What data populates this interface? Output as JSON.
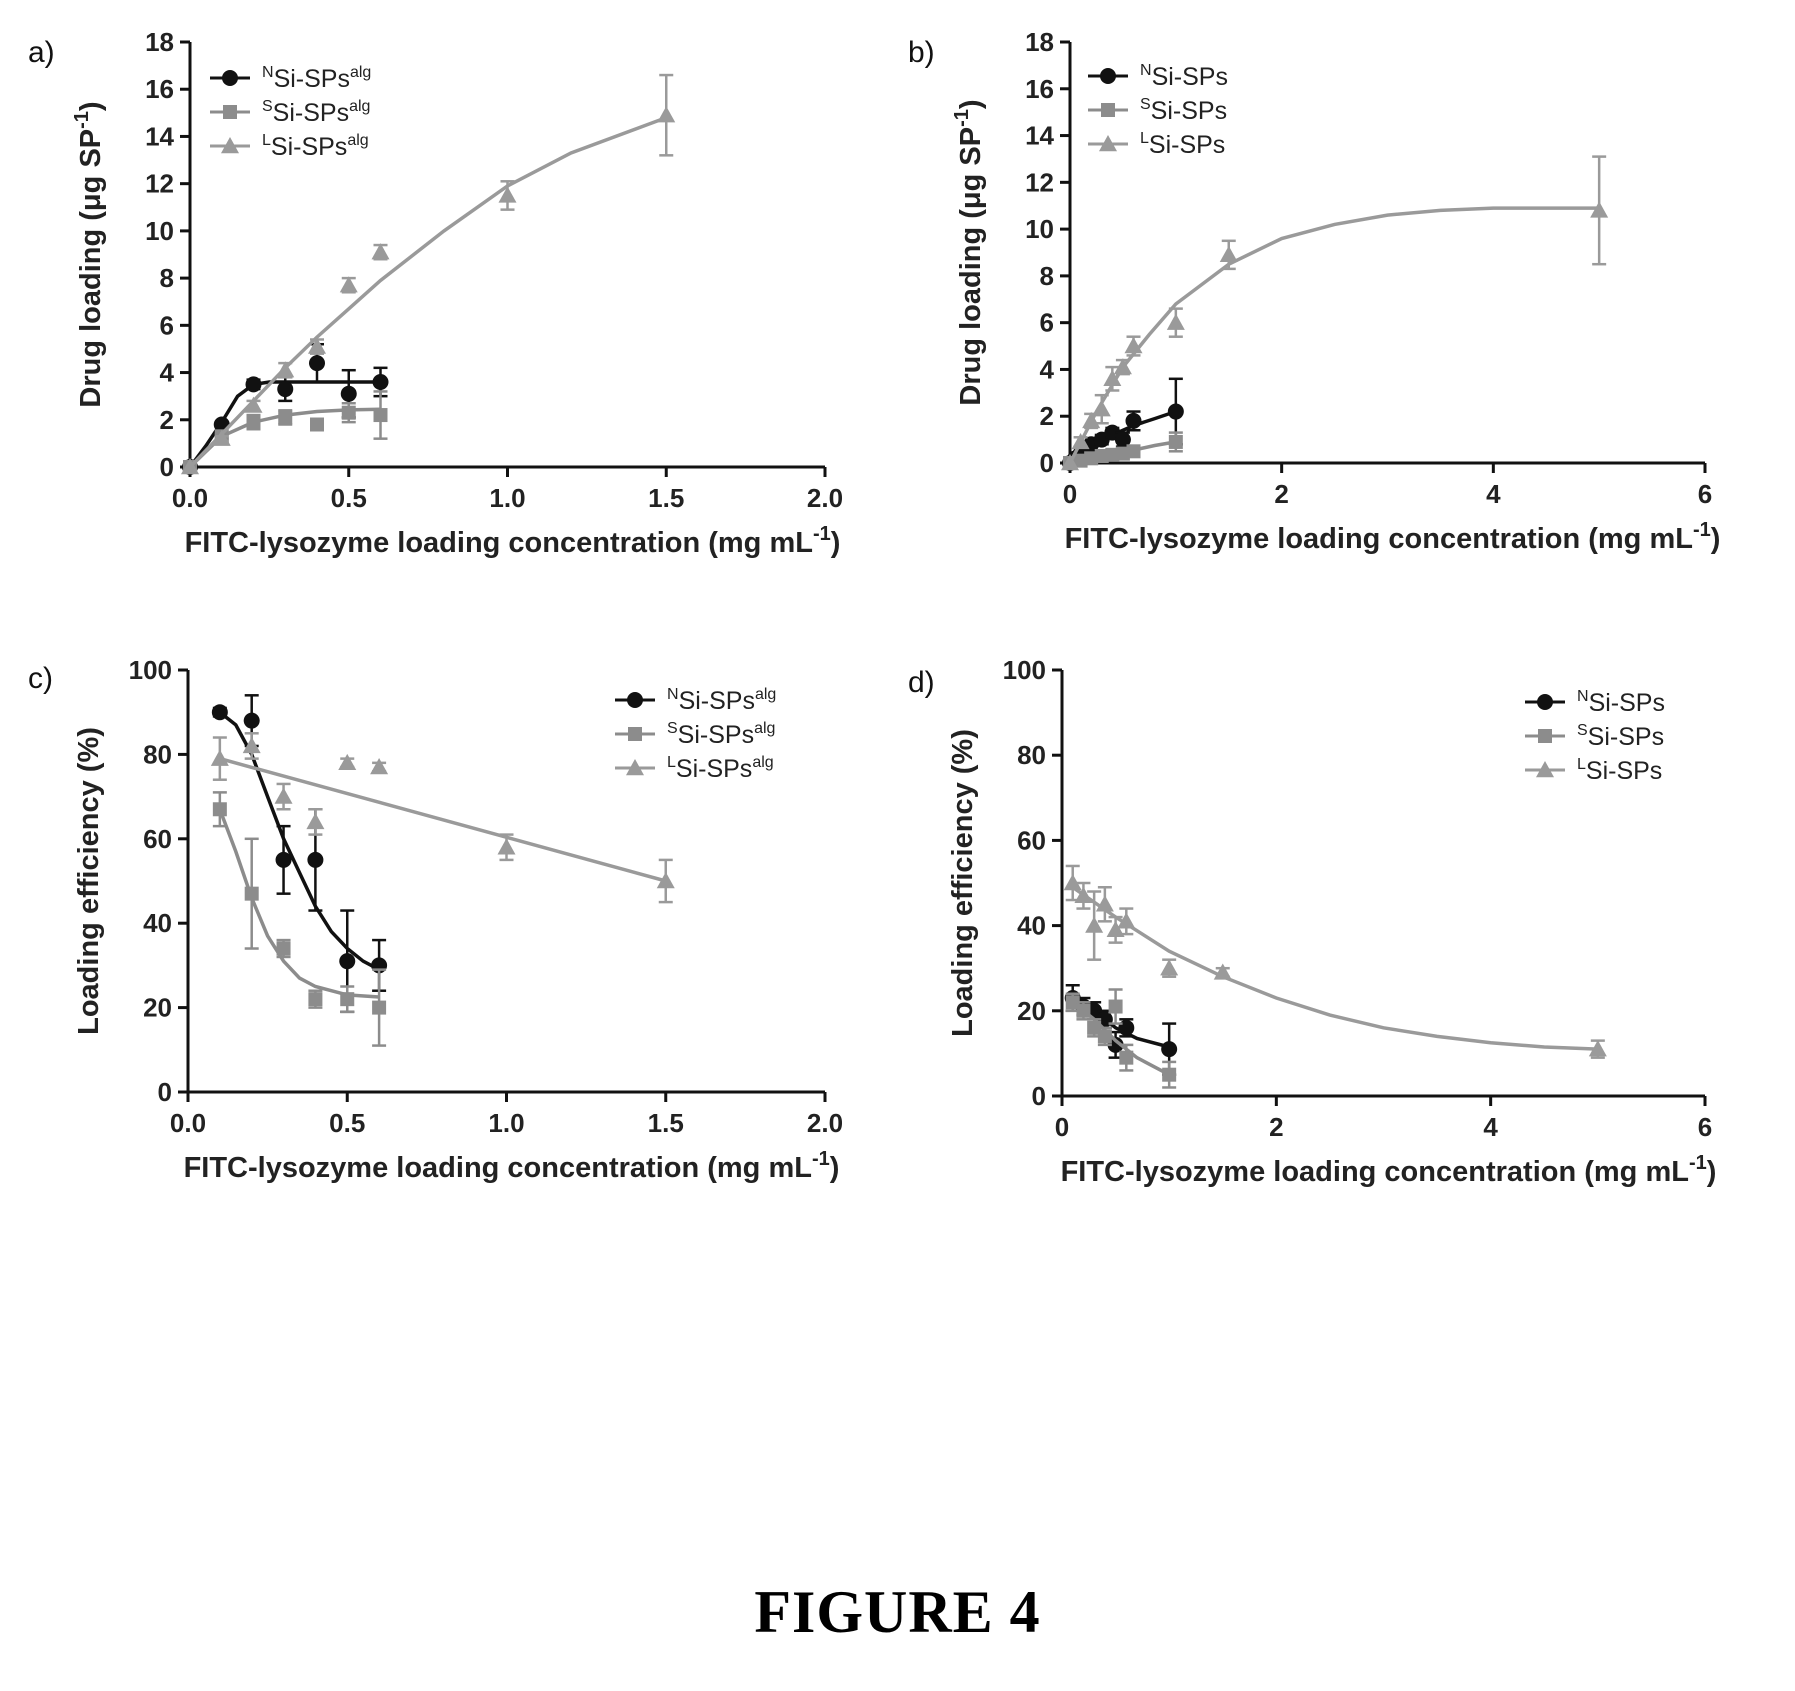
{
  "figure_caption": "FIGURE 4",
  "chart_data": [
    {
      "panel_label": "a)",
      "type": "scatter",
      "xlabel": "FITC-lysozyme loading concentration (mg mL",
      "xlabel_sup": "-1",
      "xlabel_tail": ")",
      "ylabel": "Drug loading (μg SP",
      "ylabel_sup": "-1",
      "ylabel_tail": ")",
      "xlim": [
        0,
        2.0
      ],
      "ylim": [
        0,
        18
      ],
      "xticks": [
        "0.0",
        "0.5",
        "1.0",
        "1.5",
        "2.0"
      ],
      "xtick_values": [
        0,
        0.5,
        1.0,
        1.5,
        2.0
      ],
      "yticks": [
        "0",
        "2",
        "4",
        "6",
        "8",
        "10",
        "12",
        "14",
        "16",
        "18"
      ],
      "ytick_values": [
        0,
        2,
        4,
        6,
        8,
        10,
        12,
        14,
        16,
        18
      ],
      "legend_position": "top-left",
      "series": [
        {
          "name": "Si-SPs",
          "sup_prefix": "N",
          "sup_suffix": "alg",
          "color": "#111111",
          "marker": "circle",
          "x": [
            0,
            0.1,
            0.2,
            0.3,
            0.4,
            0.5,
            0.6
          ],
          "y": [
            0,
            1.8,
            3.5,
            3.3,
            4.4,
            3.1,
            3.6
          ],
          "err": [
            0,
            0.1,
            0.2,
            0.5,
            0.8,
            1.0,
            0.6
          ],
          "fit_x": [
            0,
            0.05,
            0.1,
            0.15,
            0.2,
            0.25,
            0.3,
            0.4,
            0.5,
            0.6
          ],
          "fit_y": [
            0,
            0.9,
            1.9,
            3.0,
            3.5,
            3.6,
            3.6,
            3.6,
            3.6,
            3.6
          ]
        },
        {
          "name": "Si-SPs",
          "sup_prefix": "S",
          "sup_suffix": "alg",
          "color": "#8c8c8c",
          "marker": "square",
          "x": [
            0,
            0.1,
            0.2,
            0.3,
            0.4,
            0.5,
            0.6
          ],
          "y": [
            0,
            1.3,
            1.9,
            2.1,
            1.8,
            2.3,
            2.2
          ],
          "err": [
            0,
            0.1,
            0.3,
            0.3,
            0.2,
            0.4,
            1.0
          ],
          "fit_x": [
            0,
            0.1,
            0.2,
            0.3,
            0.4,
            0.5,
            0.6
          ],
          "fit_y": [
            0,
            1.3,
            1.9,
            2.2,
            2.35,
            2.42,
            2.45
          ]
        },
        {
          "name": "Si-SPs",
          "sup_prefix": "L",
          "sup_suffix": "alg",
          "color": "#9a9a9a",
          "marker": "triangle",
          "x": [
            0,
            0.1,
            0.2,
            0.3,
            0.4,
            0.5,
            0.6,
            1.0,
            1.5
          ],
          "y": [
            0,
            1.2,
            2.6,
            4.1,
            5.1,
            7.7,
            9.1,
            11.5,
            14.9
          ],
          "err": [
            0,
            0.1,
            0.2,
            0.3,
            0.3,
            0.3,
            0.3,
            0.6,
            1.7
          ],
          "fit_x": [
            0,
            0.1,
            0.2,
            0.3,
            0.4,
            0.5,
            0.6,
            0.8,
            1.0,
            1.2,
            1.5
          ],
          "fit_y": [
            0,
            1.4,
            2.8,
            4.2,
            5.5,
            6.7,
            7.9,
            10.0,
            11.9,
            13.3,
            14.8
          ]
        }
      ]
    },
    {
      "panel_label": "b)",
      "type": "scatter",
      "xlabel": "FITC-lysozyme loading concentration (mg mL",
      "xlabel_sup": "-1",
      "xlabel_tail": ")",
      "ylabel": "Drug loading (μg SP",
      "ylabel_sup": "-1",
      "ylabel_tail": ")",
      "xlim": [
        0,
        6
      ],
      "ylim": [
        0,
        18
      ],
      "xticks": [
        "0",
        "2",
        "4",
        "6"
      ],
      "xtick_values": [
        0,
        2,
        4,
        6
      ],
      "yticks": [
        "0",
        "2",
        "4",
        "6",
        "8",
        "10",
        "12",
        "14",
        "16",
        "18"
      ],
      "ytick_values": [
        0,
        2,
        4,
        6,
        8,
        10,
        12,
        14,
        16,
        18
      ],
      "legend_position": "top-left",
      "series": [
        {
          "name": "Si-SPs",
          "sup_prefix": "N",
          "sup_suffix": "",
          "color": "#111111",
          "marker": "circle",
          "x": [
            0,
            0.05,
            0.1,
            0.15,
            0.2,
            0.3,
            0.4,
            0.5,
            0.6,
            1.0
          ],
          "y": [
            0,
            0.2,
            0.4,
            0.5,
            0.8,
            1.0,
            1.3,
            1.0,
            1.8,
            2.2
          ],
          "err": [
            0,
            0.1,
            0.1,
            0.1,
            0.1,
            0.2,
            0.2,
            0.3,
            0.4,
            1.4
          ],
          "fit_x": [
            0,
            0.2,
            0.4,
            0.6,
            0.8,
            1.0
          ],
          "fit_y": [
            0,
            0.7,
            1.2,
            1.6,
            1.9,
            2.2
          ]
        },
        {
          "name": "Si-SPs",
          "sup_prefix": "S",
          "sup_suffix": "",
          "color": "#8c8c8c",
          "marker": "square",
          "x": [
            0,
            0.1,
            0.2,
            0.3,
            0.4,
            0.5,
            0.6,
            1.0
          ],
          "y": [
            0,
            0.1,
            0.2,
            0.3,
            0.35,
            0.4,
            0.5,
            0.9
          ],
          "err": [
            0,
            0.05,
            0.05,
            0.1,
            0.1,
            0.1,
            0.1,
            0.4
          ],
          "fit_x": [
            0,
            0.2,
            0.4,
            0.6,
            0.8,
            1.0
          ],
          "fit_y": [
            0,
            0.2,
            0.4,
            0.55,
            0.75,
            0.9
          ]
        },
        {
          "name": "Si-SPs",
          "sup_prefix": "L",
          "sup_suffix": "",
          "color": "#9a9a9a",
          "marker": "triangle",
          "x": [
            0,
            0.1,
            0.2,
            0.3,
            0.4,
            0.5,
            0.6,
            1.0,
            1.5,
            5.0
          ],
          "y": [
            0,
            0.9,
            1.8,
            2.3,
            3.6,
            4.1,
            5.0,
            6.0,
            8.9,
            10.8
          ],
          "err": [
            0,
            0.2,
            0.3,
            0.6,
            0.5,
            0.3,
            0.4,
            0.6,
            0.6,
            2.3
          ],
          "fit_x": [
            0,
            0.25,
            0.5,
            0.75,
            1.0,
            1.5,
            2.0,
            2.5,
            3.0,
            3.5,
            4.0,
            5.0
          ],
          "fit_y": [
            0,
            2.2,
            4.1,
            5.5,
            6.8,
            8.5,
            9.6,
            10.2,
            10.6,
            10.8,
            10.9,
            10.9
          ]
        }
      ]
    },
    {
      "panel_label": "c)",
      "type": "scatter",
      "xlabel": "FITC-lysozyme loading concentration (mg mL",
      "xlabel_sup": "-1",
      "xlabel_tail": ")",
      "ylabel": "Loading efficiency (%)",
      "ylabel_sup": "",
      "ylabel_tail": "",
      "xlim": [
        0,
        2.0
      ],
      "ylim": [
        0,
        100
      ],
      "xticks": [
        "0.0",
        "0.5",
        "1.0",
        "1.5",
        "2.0"
      ],
      "xtick_values": [
        0,
        0.5,
        1.0,
        1.5,
        2.0
      ],
      "yticks": [
        "0",
        "20",
        "40",
        "60",
        "80",
        "100"
      ],
      "ytick_values": [
        0,
        20,
        40,
        60,
        80,
        100
      ],
      "legend_position": "top-right",
      "series": [
        {
          "name": "Si-SPs",
          "sup_prefix": "N",
          "sup_suffix": "alg",
          "color": "#111111",
          "marker": "circle",
          "x": [
            0.1,
            0.2,
            0.3,
            0.4,
            0.5,
            0.6
          ],
          "y": [
            90,
            88,
            55,
            55,
            31,
            30
          ],
          "err": [
            1,
            6,
            8,
            12,
            12,
            6
          ],
          "fit_x": [
            0.1,
            0.15,
            0.2,
            0.25,
            0.3,
            0.35,
            0.4,
            0.45,
            0.5,
            0.55,
            0.6
          ],
          "fit_y": [
            90,
            87,
            80,
            70,
            60,
            52,
            44,
            38,
            34,
            31,
            29
          ]
        },
        {
          "name": "Si-SPs",
          "sup_prefix": "S",
          "sup_suffix": "alg",
          "color": "#8c8c8c",
          "marker": "square",
          "x": [
            0.1,
            0.2,
            0.3,
            0.4,
            0.5,
            0.6
          ],
          "y": [
            67,
            47,
            34,
            22,
            22,
            20
          ],
          "err": [
            4,
            13,
            2,
            2,
            3,
            9
          ],
          "fit_x": [
            0.1,
            0.15,
            0.2,
            0.25,
            0.3,
            0.35,
            0.4,
            0.5,
            0.6
          ],
          "fit_y": [
            67,
            57,
            46,
            37,
            31,
            27,
            25,
            23,
            22.5
          ]
        },
        {
          "name": "Si-SPs",
          "sup_prefix": "L",
          "sup_suffix": "alg",
          "color": "#9a9a9a",
          "marker": "triangle",
          "x": [
            0.1,
            0.2,
            0.3,
            0.4,
            0.5,
            0.6,
            1.0,
            1.5
          ],
          "y": [
            79,
            82,
            70,
            64,
            78,
            77,
            58,
            50
          ],
          "err": [
            5,
            3,
            3,
            3,
            1,
            1,
            3,
            5
          ],
          "fit_x": [
            0.1,
            1.5
          ],
          "fit_y": [
            79,
            50
          ]
        }
      ]
    },
    {
      "panel_label": "d)",
      "type": "scatter",
      "xlabel": "FITC-lysozyme loading concentration (mg mL",
      "xlabel_sup": "-1",
      "xlabel_tail": ")",
      "ylabel": "Loading efficiency (%)",
      "ylabel_sup": "",
      "ylabel_tail": "",
      "xlim": [
        0,
        6
      ],
      "ylim": [
        0,
        100
      ],
      "xticks": [
        "0",
        "2",
        "4",
        "6"
      ],
      "xtick_values": [
        0,
        2,
        4,
        6
      ],
      "yticks": [
        "0",
        "20",
        "40",
        "60",
        "80",
        "100"
      ],
      "ytick_values": [
        0,
        20,
        40,
        60,
        80,
        100
      ],
      "legend_position": "top-right",
      "series": [
        {
          "name": "Si-SPs",
          "sup_prefix": "N",
          "sup_suffix": "",
          "color": "#111111",
          "marker": "circle",
          "x": [
            0.1,
            0.2,
            0.3,
            0.4,
            0.5,
            0.6,
            1.0
          ],
          "y": [
            23,
            21,
            20,
            18,
            12,
            16,
            11
          ],
          "err": [
            3,
            2,
            2,
            2,
            3,
            2,
            6
          ],
          "fit_x": [
            0.1,
            0.3,
            0.5,
            0.7,
            1.0
          ],
          "fit_y": [
            22.5,
            20,
            16,
            13.5,
            11.5
          ]
        },
        {
          "name": "Si-SPs",
          "sup_prefix": "S",
          "sup_suffix": "",
          "color": "#8c8c8c",
          "marker": "square",
          "x": [
            0.1,
            0.2,
            0.3,
            0.4,
            0.5,
            0.6,
            1.0
          ],
          "y": [
            22,
            20,
            16,
            14,
            21,
            9,
            5
          ],
          "err": [
            2,
            2,
            2,
            2,
            4,
            3,
            3
          ],
          "fit_x": [
            0.1,
            0.3,
            0.5,
            0.7,
            1.0
          ],
          "fit_y": [
            22,
            18,
            13,
            9,
            5
          ]
        },
        {
          "name": "Si-SPs",
          "sup_prefix": "L",
          "sup_suffix": "",
          "color": "#9a9a9a",
          "marker": "triangle",
          "x": [
            0.1,
            0.2,
            0.3,
            0.4,
            0.5,
            0.6,
            1.0,
            1.5,
            5.0
          ],
          "y": [
            50,
            47,
            40,
            45,
            39,
            41,
            30,
            29,
            11
          ],
          "err": [
            4,
            3,
            8,
            4,
            3,
            3,
            2,
            1,
            2
          ],
          "fit_x": [
            0.1,
            0.5,
            1.0,
            1.5,
            2.0,
            2.5,
            3.0,
            3.5,
            4.0,
            4.5,
            5.0
          ],
          "fit_y": [
            49,
            42,
            34,
            28,
            23,
            19,
            16,
            14,
            12.5,
            11.5,
            11
          ]
        }
      ]
    }
  ]
}
